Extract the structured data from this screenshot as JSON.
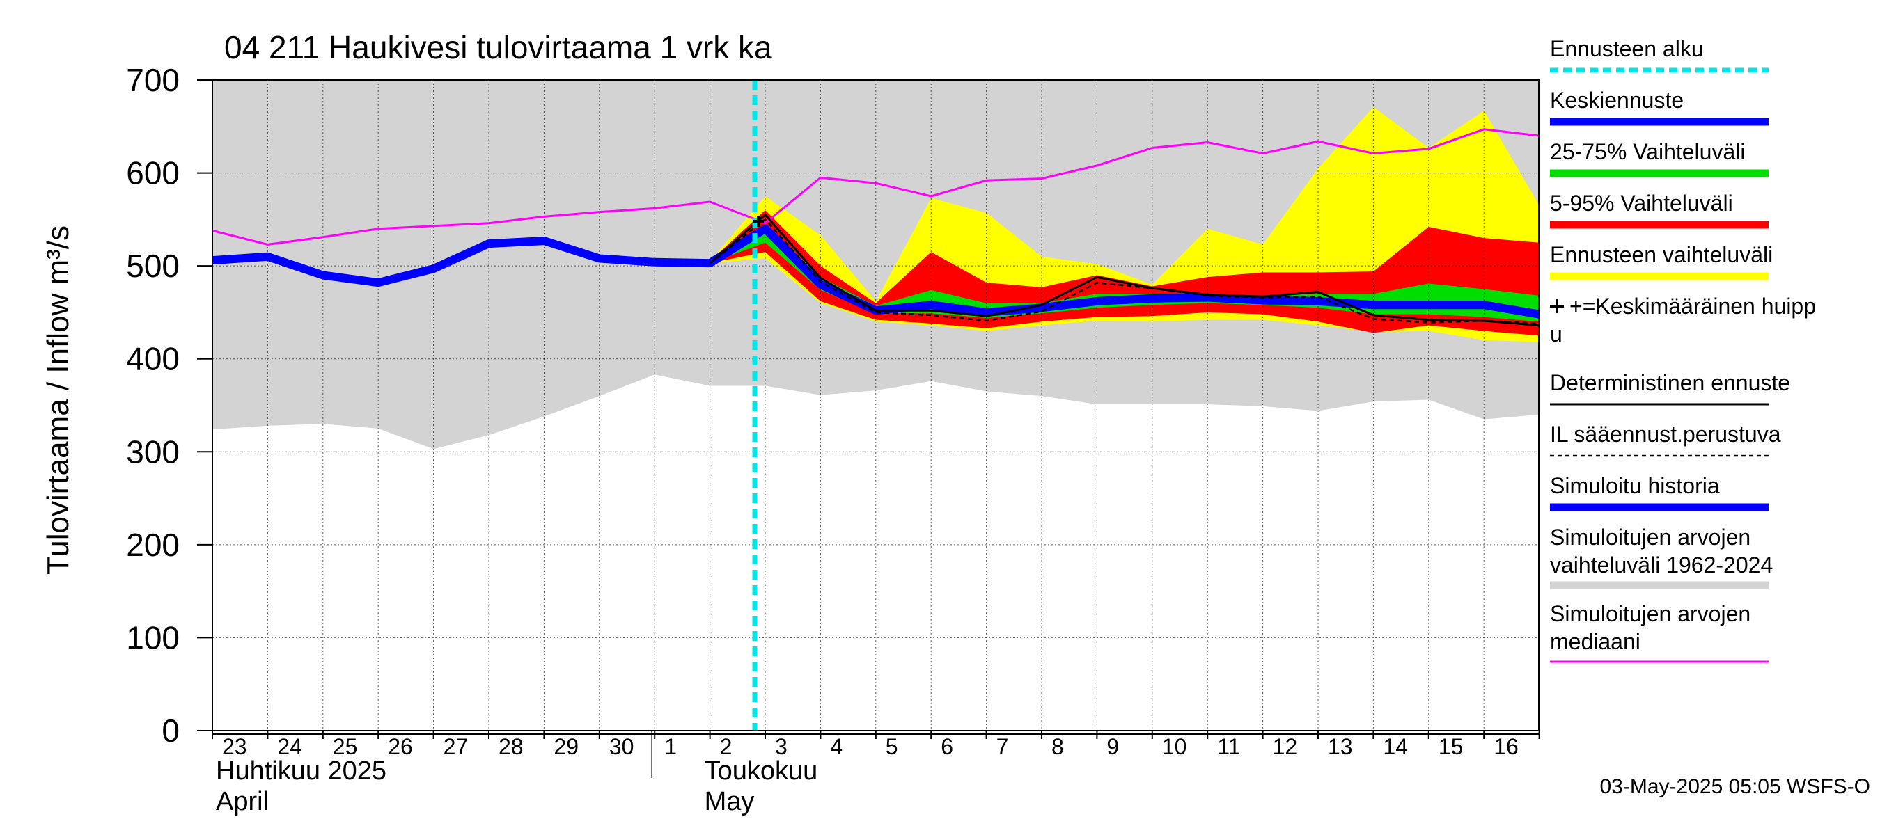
{
  "chart_data": {
    "type": "area",
    "title": "04 211 Haukivesi tulovirtaama 1 vrk ka",
    "ylabel": "Tulovirtaama / Inflow    m³/s",
    "ylim": [
      0,
      700
    ],
    "yticks": [
      "0",
      "100",
      "200",
      "300",
      "400",
      "500",
      "600",
      "700"
    ],
    "x_days": [
      "23",
      "24",
      "25",
      "26",
      "27",
      "28",
      "29",
      "30",
      "1",
      "2",
      "3",
      "4",
      "5",
      "6",
      "7",
      "8",
      "9",
      "10",
      "11",
      "12",
      "13",
      "14",
      "15",
      "16"
    ],
    "month_labels": [
      {
        "line1": "Huhtikuu  2025",
        "line2": "April"
      },
      {
        "line1": "Toukokuu",
        "line2": "May"
      }
    ],
    "forecast_start_day": "3",
    "timestamp": "03-May-2025 05:05 WSFS-O",
    "colors": {
      "hist_range": "#d3d3d3",
      "forecast_range": "#ffff00",
      "p5_95": "#ff0000",
      "p25_75": "#00dd00",
      "mean": "#0000ff",
      "median": "#ff00ff",
      "forecast_start": "#00e5e5",
      "deterministic": "#000000"
    },
    "series": [
      {
        "key": "hist_range",
        "name": "Simuloitujen arvojen vaihteluväli 1962-2024",
        "x": [
          "23",
          "24",
          "25",
          "26",
          "27",
          "28",
          "29",
          "30",
          "1",
          "2",
          "3",
          "4",
          "5",
          "6",
          "7",
          "8",
          "9",
          "10",
          "11",
          "12",
          "13",
          "14",
          "15",
          "16",
          "17"
        ],
        "low": [
          324,
          328,
          330,
          325,
          303,
          318,
          338,
          360,
          383,
          371,
          371,
          361,
          366,
          376,
          365,
          360,
          351,
          351,
          351,
          349,
          344,
          354,
          356,
          335,
          340
        ],
        "high": [
          700,
          700,
          700,
          700,
          700,
          700,
          700,
          700,
          700,
          700,
          700,
          700,
          700,
          700,
          700,
          700,
          700,
          700,
          700,
          700,
          700,
          700,
          700,
          700,
          700
        ]
      },
      {
        "key": "median",
        "name": "Simuloitujen arvojen mediaani",
        "x": [
          "23",
          "24",
          "25",
          "26",
          "27",
          "28",
          "29",
          "30",
          "1",
          "2",
          "3",
          "4",
          "5",
          "6",
          "7",
          "8",
          "9",
          "10",
          "11",
          "12",
          "13",
          "14",
          "15",
          "16",
          "17"
        ],
        "values": [
          538,
          523,
          531,
          540,
          543,
          546,
          553,
          558,
          562,
          569,
          546,
          595,
          589,
          575,
          592,
          594,
          608,
          627,
          633,
          621,
          634,
          621,
          626,
          647,
          640
        ]
      },
      {
        "key": "forecast_range",
        "name": "Ennusteen vaihteluväli",
        "x": [
          "2",
          "3",
          "4",
          "5",
          "6",
          "7",
          "8",
          "9",
          "10",
          "11",
          "12",
          "13",
          "14",
          "15",
          "16",
          "17"
        ],
        "low": [
          503,
          508,
          460,
          440,
          436,
          430,
          436,
          441,
          440,
          442,
          442,
          436,
          429,
          430,
          420,
          418
        ],
        "high": [
          505,
          575,
          533,
          462,
          573,
          557,
          510,
          502,
          480,
          540,
          523,
          605,
          671,
          627,
          667,
          565
        ]
      },
      {
        "key": "p5_95",
        "name": "5-95% Vaihteluväli",
        "x": [
          "2",
          "3",
          "4",
          "5",
          "6",
          "7",
          "8",
          "9",
          "10",
          "11",
          "12",
          "13",
          "14",
          "15",
          "16",
          "17"
        ],
        "low": [
          503,
          515,
          462,
          442,
          438,
          433,
          440,
          445,
          446,
          450,
          448,
          440,
          428,
          436,
          430,
          425
        ],
        "high": [
          505,
          560,
          500,
          460,
          515,
          482,
          477,
          490,
          478,
          488,
          493,
          493,
          494,
          542,
          530,
          525
        ]
      },
      {
        "key": "p25_75",
        "name": "25-75% Vaihteluväli",
        "x": [
          "2",
          "3",
          "4",
          "5",
          "6",
          "7",
          "8",
          "9",
          "10",
          "11",
          "12",
          "13",
          "14",
          "15",
          "16",
          "17"
        ],
        "low": [
          503,
          525,
          474,
          449,
          449,
          444,
          449,
          455,
          458,
          460,
          458,
          455,
          448,
          448,
          445,
          440
        ],
        "high": [
          505,
          545,
          488,
          457,
          474,
          460,
          460,
          470,
          470,
          470,
          468,
          470,
          470,
          481,
          475,
          468
        ]
      },
      {
        "key": "mean",
        "name": "Keskiennuste",
        "x": [
          "23",
          "24",
          "25",
          "26",
          "27",
          "28",
          "29",
          "30",
          "1",
          "2",
          "3",
          "4",
          "5",
          "6",
          "7",
          "8",
          "9",
          "10",
          "11",
          "12",
          "13",
          "14",
          "15",
          "16",
          "17"
        ],
        "values": [
          506,
          510,
          490,
          482,
          497,
          524,
          527,
          508,
          504,
          503,
          540,
          480,
          452,
          458,
          450,
          455,
          462,
          465,
          466,
          463,
          462,
          458,
          458,
          458,
          448
        ]
      },
      {
        "key": "deterministic",
        "name": "Deterministinen ennuste",
        "x": [
          "2",
          "3",
          "4",
          "5",
          "6",
          "7",
          "8",
          "9",
          "10",
          "11",
          "12",
          "13",
          "14",
          "15",
          "16",
          "17"
        ],
        "values": [
          503,
          555,
          487,
          452,
          452,
          446,
          458,
          488,
          476,
          469,
          467,
          472,
          447,
          442,
          441,
          436
        ]
      },
      {
        "key": "il_forecast",
        "name": "IL sääennust.perustuva",
        "x": [
          "2",
          "3",
          "4",
          "5",
          "6",
          "7",
          "8",
          "9",
          "10",
          "11",
          "12",
          "13",
          "14",
          "15",
          "16",
          "17"
        ],
        "values": [
          503,
          550,
          483,
          450,
          447,
          441,
          451,
          482,
          476,
          468,
          466,
          467,
          443,
          439,
          441,
          438
        ]
      }
    ],
    "mean_peak_marker": {
      "x": "3",
      "value": 548
    },
    "legend": [
      {
        "label": "Ennusteen alku",
        "style": "dashed",
        "color": "#00e5e5"
      },
      {
        "label": "Keskiennuste",
        "style": "thick",
        "color": "#0000ff"
      },
      {
        "label": "25-75% Vaihteluväli",
        "style": "thick",
        "color": "#00dd00"
      },
      {
        "label": "5-95% Vaihteluväli",
        "style": "thick",
        "color": "#ff0000"
      },
      {
        "label": "Ennusteen vaihteluväli",
        "style": "thick",
        "color": "#ffff00"
      },
      {
        "label": "+=Keskimääräinen huipp",
        "label2": "u",
        "style": "plus",
        "color": "#000000"
      },
      {
        "label": "Deterministinen ennuste",
        "style": "thin",
        "color": "#000000"
      },
      {
        "label": "IL sääennust.perustuva",
        "style": "dotted",
        "color": "#000000"
      },
      {
        "label": "Simuloitu historia",
        "style": "thick",
        "color": "#0000ff"
      },
      {
        "label": "Simuloitujen arvojen",
        "label2": "vaihteluväli 1962-2024",
        "style": "thick",
        "color": "#d3d3d3"
      },
      {
        "label": "Simuloitujen arvojen",
        "label2": "mediaani",
        "style": "thin",
        "color": "#ff00ff"
      }
    ]
  }
}
